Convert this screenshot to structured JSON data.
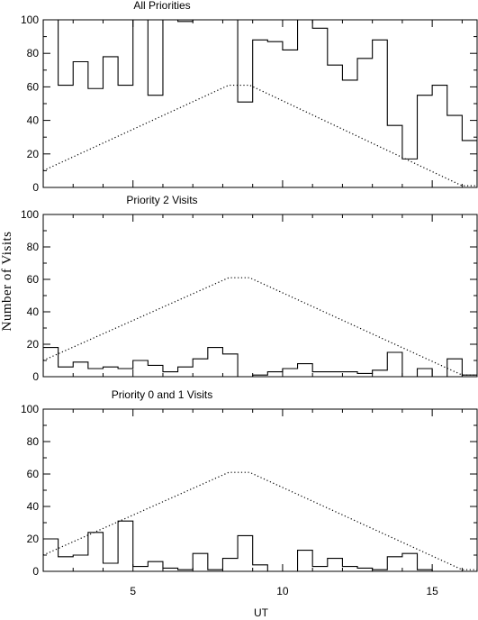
{
  "chart_data": {
    "type": "histogram",
    "ylabel": "Number of Visits",
    "xlabel": "UT",
    "xlim": [
      2.0,
      16.5
    ],
    "ylim": [
      0,
      100
    ],
    "xticks": [
      5,
      10,
      15
    ],
    "yticks": [
      0,
      20,
      40,
      60,
      80,
      100
    ],
    "bin_edges": [
      2.0,
      2.5,
      3.0,
      3.5,
      4.0,
      4.5,
      5.0,
      5.5,
      6.0,
      6.5,
      7.0,
      7.5,
      8.0,
      8.5,
      9.0,
      9.5,
      10.0,
      10.5,
      11.0,
      11.5,
      12.0,
      12.5,
      13.0,
      13.5,
      14.0,
      14.5,
      15.0,
      15.5,
      16.0,
      16.5
    ],
    "reference_curve": {
      "style": "dotted",
      "x": [
        2.0,
        8.2,
        8.9,
        16.0,
        16.5
      ],
      "y": [
        10,
        61,
        61,
        1,
        1
      ]
    },
    "panels": [
      {
        "title": "All Priorities",
        "counts": [
          100,
          61,
          75,
          59,
          78,
          61,
          100,
          55,
          100,
          99,
          100,
          100,
          100,
          51,
          88,
          87,
          82,
          100,
          95,
          73,
          64,
          77,
          88,
          37,
          17,
          55,
          61,
          43,
          28
        ]
      },
      {
        "title": "Priority 2 Visits",
        "counts": [
          18,
          6,
          9,
          5,
          6,
          5,
          10,
          7,
          3,
          6,
          11,
          18,
          14,
          0,
          1,
          3,
          5,
          8,
          3,
          3,
          3,
          2,
          4,
          15,
          0,
          5,
          0,
          11,
          1
        ]
      },
      {
        "title": "Priority 0 and 1 Visits",
        "counts": [
          20,
          9,
          10,
          24,
          5,
          31,
          3,
          6,
          2,
          1,
          11,
          1,
          8,
          22,
          4,
          0,
          0,
          13,
          3,
          8,
          3,
          2,
          1,
          9,
          11,
          1,
          0,
          0,
          0
        ]
      }
    ]
  }
}
